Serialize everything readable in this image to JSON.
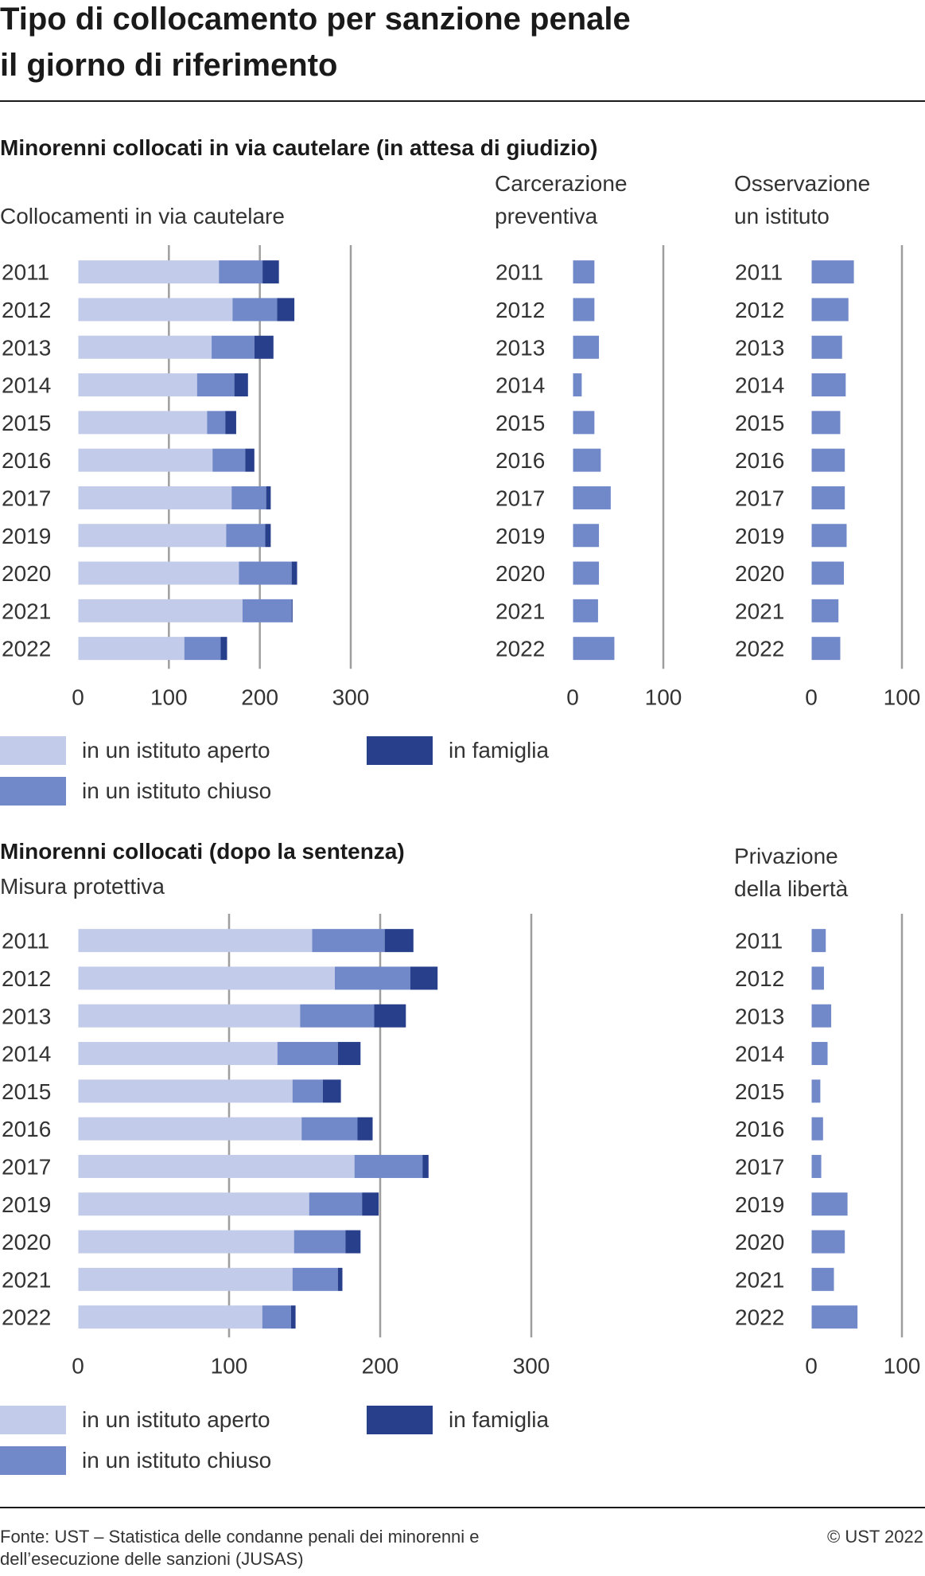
{
  "title": {
    "line1": "Tipo di collocamento per sanzione penale",
    "line2": "il giorno di riferimento"
  },
  "colors": {
    "aperto": "#c2cbe9",
    "chiuso": "#7189c9",
    "famiglia": "#283f8c",
    "gridline": "#9e9e9e",
    "text": "#333333"
  },
  "section1": {
    "title": "Minorenni collocati in via cautelare (in attesa di giudizio)",
    "legend": {
      "aperto": "in un istituto aperto",
      "chiuso": "in un istituto chiuso",
      "famiglia": "in famiglia"
    }
  },
  "section2": {
    "title": "Minorenni collocati (dopo la sentenza)",
    "legend": {
      "aperto": "in un istituto aperto",
      "chiuso": "in un istituto chiuso",
      "famiglia": "in famiglia"
    }
  },
  "chart_data": [
    {
      "id": "cautelare",
      "type": "bar",
      "orientation": "horizontal",
      "stacked": true,
      "title_lines": [
        "Collocamenti in via cautelare"
      ],
      "categories": [
        "2011",
        "2012",
        "2013",
        "2014",
        "2015",
        "2016",
        "2017",
        "2019",
        "2020",
        "2021",
        "2022"
      ],
      "xlim": [
        0,
        300
      ],
      "xticks": [
        0,
        100,
        200,
        300
      ],
      "grid": true,
      "series": [
        {
          "name": "in un istituto aperto",
          "color": "#c2cbe9",
          "values": [
            155,
            170,
            147,
            131,
            142,
            148,
            169,
            163,
            177,
            181,
            117
          ]
        },
        {
          "name": "in un istituto chiuso",
          "color": "#7189c9",
          "values": [
            48,
            49,
            47,
            41,
            20,
            36,
            38,
            43,
            58,
            54,
            40
          ]
        },
        {
          "name": "in famiglia",
          "color": "#283f8c",
          "values": [
            18,
            19,
            21,
            15,
            12,
            10,
            5,
            6,
            6,
            1,
            7
          ]
        }
      ]
    },
    {
      "id": "carcerazione",
      "type": "bar",
      "orientation": "horizontal",
      "title_lines": [
        "Carcerazione",
        "preventiva"
      ],
      "categories": [
        "2011",
        "2012",
        "2013",
        "2014",
        "2015",
        "2016",
        "2017",
        "2019",
        "2020",
        "2021",
        "2022"
      ],
      "xlim": [
        0,
        100
      ],
      "xticks": [
        0,
        100
      ],
      "grid": true,
      "series": [
        {
          "name": "",
          "color": "#7189c9",
          "values": [
            24,
            24,
            29,
            10,
            24,
            31,
            42,
            29,
            29,
            28,
            46
          ]
        }
      ]
    },
    {
      "id": "osservazione",
      "type": "bar",
      "orientation": "horizontal",
      "title_lines": [
        "Osservazione",
        "un istituto"
      ],
      "categories": [
        "2011",
        "2012",
        "2013",
        "2014",
        "2015",
        "2016",
        "2017",
        "2019",
        "2020",
        "2021",
        "2022"
      ],
      "xlim": [
        0,
        100
      ],
      "xticks": [
        0,
        100
      ],
      "grid": true,
      "series": [
        {
          "name": "",
          "color": "#7189c9",
          "values": [
            47,
            41,
            34,
            38,
            32,
            37,
            37,
            39,
            36,
            30,
            32
          ]
        }
      ]
    },
    {
      "id": "protettiva",
      "type": "bar",
      "orientation": "horizontal",
      "stacked": true,
      "title_lines": [
        "Misura protettiva"
      ],
      "categories": [
        "2011",
        "2012",
        "2013",
        "2014",
        "2015",
        "2016",
        "2017",
        "2019",
        "2020",
        "2021",
        "2022"
      ],
      "xlim": [
        0,
        300
      ],
      "xticks": [
        0,
        100,
        200,
        300
      ],
      "grid": true,
      "series": [
        {
          "name": "in un istituto aperto",
          "color": "#c2cbe9",
          "values": [
            155,
            170,
            147,
            132,
            142,
            148,
            183,
            153,
            143,
            142,
            122
          ]
        },
        {
          "name": "in un istituto chiuso",
          "color": "#7189c9",
          "values": [
            48,
            50,
            49,
            40,
            20,
            37,
            45,
            35,
            34,
            30,
            19
          ]
        },
        {
          "name": "in famiglia",
          "color": "#283f8c",
          "values": [
            19,
            18,
            21,
            15,
            12,
            10,
            4,
            11,
            10,
            3,
            3
          ]
        }
      ]
    },
    {
      "id": "privazione",
      "type": "bar",
      "orientation": "horizontal",
      "title_lines": [
        "Privazione",
        "della libertà"
      ],
      "categories": [
        "2011",
        "2012",
        "2013",
        "2014",
        "2015",
        "2016",
        "2017",
        "2019",
        "2020",
        "2021",
        "2022"
      ],
      "xlim": [
        0,
        100
      ],
      "xticks": [
        0,
        100
      ],
      "grid": true,
      "series": [
        {
          "name": "",
          "color": "#7189c9",
          "values": [
            16,
            14,
            22,
            18,
            10,
            13,
            11,
            40,
            37,
            25,
            51
          ]
        }
      ]
    }
  ],
  "footer": {
    "source_line1": "Fonte: UST – Statistica delle condanne penali dei minorenni e",
    "source_line2": "dell’esecuzione delle sanzioni (JUSAS)",
    "copyright": "© UST 2022"
  }
}
